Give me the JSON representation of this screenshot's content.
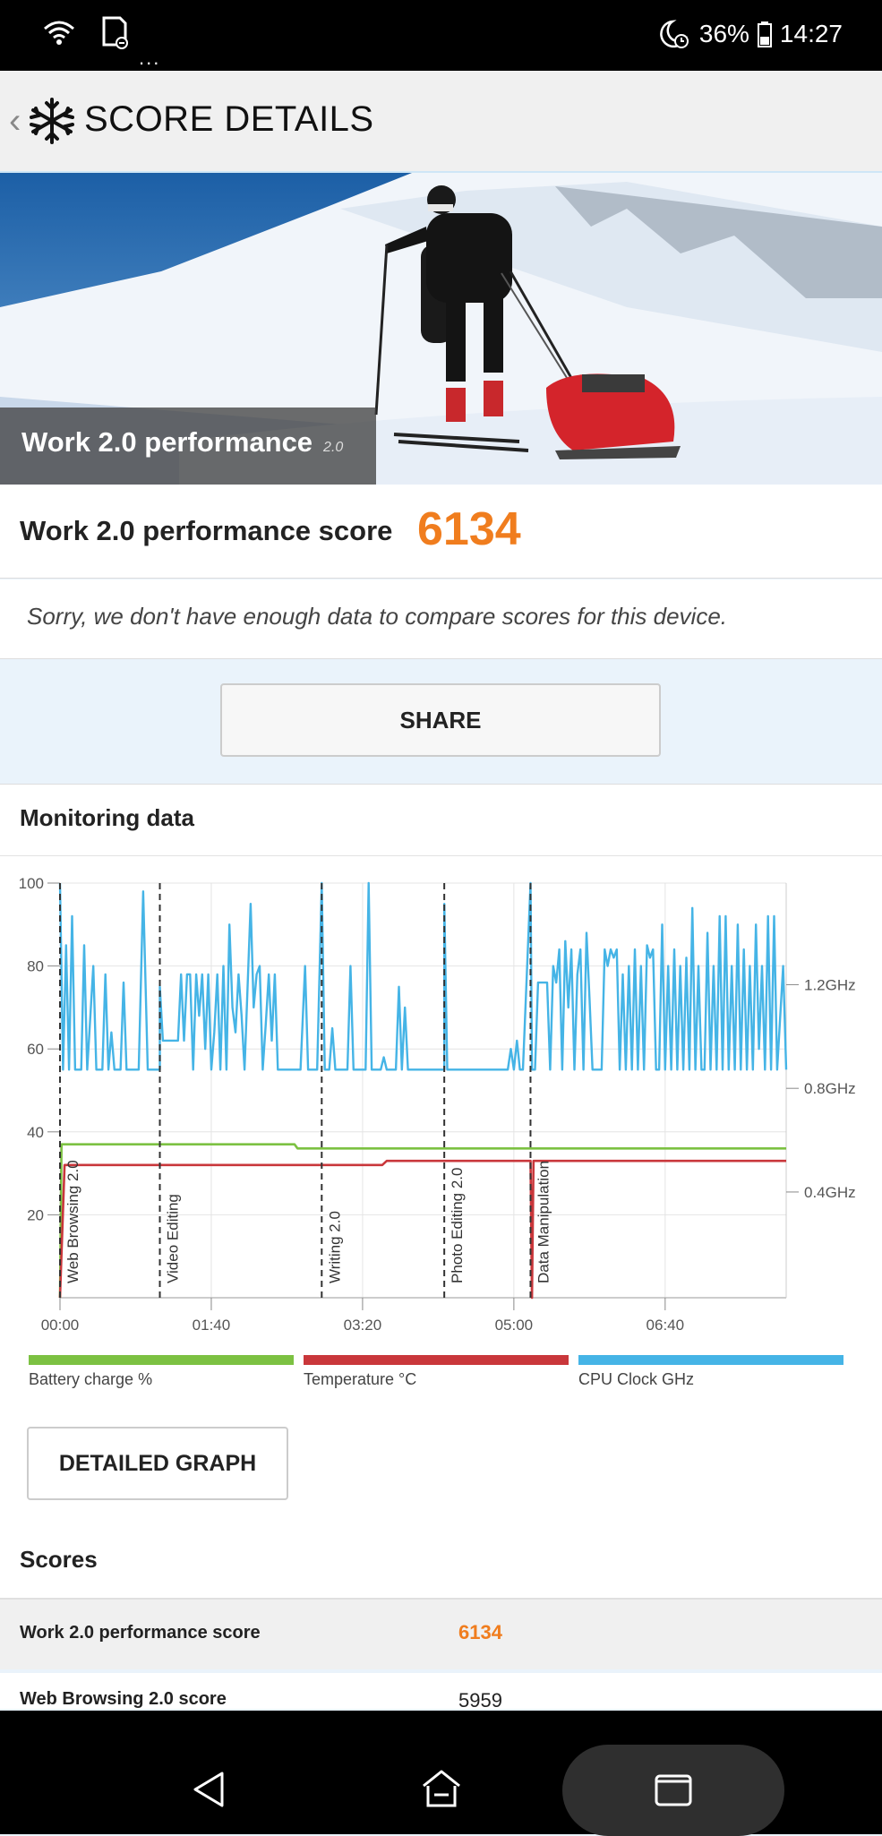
{
  "status_bar": {
    "battery_percent": "36%",
    "time": "14:27",
    "dots": "...",
    "icons": [
      "wifi-icon",
      "sd-card-icon",
      "moon-alarm-icon",
      "battery-icon"
    ]
  },
  "header": {
    "title": "SCORE DETAILS",
    "back_glyph": "‹",
    "icon": "snowflake-icon"
  },
  "hero": {
    "title": "Work 2.0 performance",
    "version": "2.0"
  },
  "score": {
    "label": "Work 2.0 performance score",
    "value": "6134"
  },
  "notice": "Sorry, we don't have enough data to compare scores for this device.",
  "share_label": "SHARE",
  "monitoring": {
    "title": "Monitoring data",
    "detailed_graph_label": "DETAILED GRAPH"
  },
  "chart_data": {
    "type": "line",
    "xlabel": "",
    "ylabel": "",
    "x_ticks": [
      "00:00",
      "01:40",
      "03:20",
      "05:00",
      "06:40"
    ],
    "x_range_seconds": [
      0,
      480
    ],
    "y_left": {
      "ticks": [
        20,
        40,
        60,
        80,
        100
      ],
      "range": [
        0,
        100
      ]
    },
    "y_right": {
      "ticks": [
        "0.4GHz",
        "0.8GHz",
        "1.2GHz"
      ]
    },
    "grid": true,
    "legend_position": "bottom",
    "colors": {
      "battery": "#7cc142",
      "temperature": "#c9373b",
      "cpu": "#45b4e6",
      "marker": "#333333"
    },
    "markers": [
      {
        "t": 0,
        "label": "Web Browsing 2.0"
      },
      {
        "t": 66,
        "label": "Video Editing"
      },
      {
        "t": 173,
        "label": "Writing 2.0"
      },
      {
        "t": 254,
        "label": "Photo Editing 2.0"
      },
      {
        "t": 311,
        "label": "Data Manipulation"
      }
    ],
    "series": [
      {
        "name": "Battery charge %",
        "points": [
          [
            0,
            0
          ],
          [
            1,
            37
          ],
          [
            155,
            37
          ],
          [
            157,
            36
          ],
          [
            480,
            36
          ]
        ]
      },
      {
        "name": "Temperature °C",
        "points": [
          [
            0,
            0
          ],
          [
            3,
            32
          ],
          [
            213,
            32
          ],
          [
            216,
            33
          ],
          [
            311,
            33
          ],
          [
            312,
            0
          ],
          [
            313,
            33
          ],
          [
            480,
            33
          ]
        ]
      },
      {
        "name": "CPU Clock GHz",
        "points": [
          [
            0,
            100
          ],
          [
            2,
            55
          ],
          [
            4,
            85
          ],
          [
            6,
            55
          ],
          [
            8,
            92
          ],
          [
            10,
            55
          ],
          [
            14,
            55
          ],
          [
            16,
            85
          ],
          [
            18,
            55
          ],
          [
            22,
            80
          ],
          [
            24,
            55
          ],
          [
            28,
            55
          ],
          [
            30,
            78
          ],
          [
            32,
            55
          ],
          [
            34,
            64
          ],
          [
            36,
            55
          ],
          [
            40,
            55
          ],
          [
            42,
            76
          ],
          [
            44,
            55
          ],
          [
            48,
            55
          ],
          [
            52,
            55
          ],
          [
            55,
            98
          ],
          [
            58,
            55
          ],
          [
            62,
            55
          ],
          [
            66,
            55
          ],
          [
            66,
            75
          ],
          [
            68,
            62
          ],
          [
            72,
            62
          ],
          [
            78,
            62
          ],
          [
            80,
            78
          ],
          [
            82,
            62
          ],
          [
            84,
            78
          ],
          [
            86,
            78
          ],
          [
            88,
            55
          ],
          [
            90,
            78
          ],
          [
            92,
            68
          ],
          [
            94,
            78
          ],
          [
            96,
            60
          ],
          [
            98,
            78
          ],
          [
            100,
            55
          ],
          [
            102,
            64
          ],
          [
            104,
            78
          ],
          [
            106,
            55
          ],
          [
            108,
            80
          ],
          [
            110,
            55
          ],
          [
            112,
            90
          ],
          [
            114,
            70
          ],
          [
            116,
            64
          ],
          [
            118,
            78
          ],
          [
            120,
            68
          ],
          [
            122,
            55
          ],
          [
            126,
            95
          ],
          [
            128,
            70
          ],
          [
            130,
            78
          ],
          [
            132,
            80
          ],
          [
            134,
            55
          ],
          [
            136,
            66
          ],
          [
            138,
            78
          ],
          [
            140,
            62
          ],
          [
            142,
            78
          ],
          [
            144,
            55
          ],
          [
            146,
            55
          ],
          [
            150,
            55
          ],
          [
            155,
            55
          ],
          [
            159,
            55
          ],
          [
            162,
            80
          ],
          [
            164,
            55
          ],
          [
            168,
            55
          ],
          [
            170,
            55
          ],
          [
            173,
            100
          ],
          [
            175,
            55
          ],
          [
            178,
            55
          ],
          [
            180,
            65
          ],
          [
            182,
            55
          ],
          [
            186,
            55
          ],
          [
            190,
            55
          ],
          [
            192,
            80
          ],
          [
            194,
            55
          ],
          [
            198,
            55
          ],
          [
            202,
            55
          ],
          [
            204,
            100
          ],
          [
            206,
            55
          ],
          [
            212,
            55
          ],
          [
            214,
            58
          ],
          [
            216,
            55
          ],
          [
            222,
            55
          ],
          [
            224,
            75
          ],
          [
            226,
            55
          ],
          [
            228,
            70
          ],
          [
            230,
            55
          ],
          [
            236,
            55
          ],
          [
            240,
            55
          ],
          [
            244,
            55
          ],
          [
            250,
            55
          ],
          [
            254,
            55
          ],
          [
            254,
            95
          ],
          [
            256,
            55
          ],
          [
            262,
            55
          ],
          [
            270,
            55
          ],
          [
            280,
            55
          ],
          [
            290,
            55
          ],
          [
            296,
            55
          ],
          [
            298,
            60
          ],
          [
            300,
            55
          ],
          [
            302,
            62
          ],
          [
            304,
            55
          ],
          [
            306,
            55
          ],
          [
            311,
            100
          ],
          [
            312,
            55
          ],
          [
            314,
            55
          ],
          [
            316,
            76
          ],
          [
            318,
            76
          ],
          [
            322,
            76
          ],
          [
            324,
            55
          ],
          [
            326,
            80
          ],
          [
            328,
            76
          ],
          [
            330,
            84
          ],
          [
            332,
            55
          ],
          [
            334,
            86
          ],
          [
            336,
            70
          ],
          [
            338,
            84
          ],
          [
            340,
            55
          ],
          [
            342,
            78
          ],
          [
            344,
            84
          ],
          [
            346,
            55
          ],
          [
            348,
            88
          ],
          [
            350,
            72
          ],
          [
            352,
            55
          ],
          [
            354,
            55
          ],
          [
            358,
            55
          ],
          [
            360,
            84
          ],
          [
            362,
            80
          ],
          [
            364,
            84
          ],
          [
            366,
            82
          ],
          [
            368,
            84
          ],
          [
            370,
            55
          ],
          [
            372,
            78
          ],
          [
            374,
            55
          ],
          [
            376,
            80
          ],
          [
            378,
            55
          ],
          [
            380,
            84
          ],
          [
            382,
            55
          ],
          [
            384,
            80
          ],
          [
            386,
            55
          ],
          [
            388,
            85
          ],
          [
            390,
            82
          ],
          [
            392,
            84
          ],
          [
            394,
            55
          ],
          [
            396,
            55
          ],
          [
            398,
            90
          ],
          [
            400,
            55
          ],
          [
            402,
            80
          ],
          [
            404,
            55
          ],
          [
            406,
            84
          ],
          [
            408,
            55
          ],
          [
            410,
            80
          ],
          [
            412,
            55
          ],
          [
            414,
            82
          ],
          [
            416,
            55
          ],
          [
            418,
            94
          ],
          [
            420,
            55
          ],
          [
            422,
            80
          ],
          [
            424,
            55
          ],
          [
            426,
            55
          ],
          [
            428,
            88
          ],
          [
            430,
            55
          ],
          [
            432,
            80
          ],
          [
            434,
            55
          ],
          [
            436,
            92
          ],
          [
            438,
            55
          ],
          [
            440,
            92
          ],
          [
            442,
            55
          ],
          [
            444,
            80
          ],
          [
            446,
            55
          ],
          [
            448,
            90
          ],
          [
            450,
            55
          ],
          [
            452,
            84
          ],
          [
            454,
            55
          ],
          [
            456,
            80
          ],
          [
            458,
            55
          ],
          [
            460,
            90
          ],
          [
            462,
            60
          ],
          [
            464,
            80
          ],
          [
            466,
            55
          ],
          [
            468,
            92
          ],
          [
            470,
            55
          ],
          [
            472,
            92
          ],
          [
            474,
            55
          ],
          [
            478,
            80
          ],
          [
            480,
            55
          ]
        ]
      }
    ]
  },
  "scores": {
    "title": "Scores",
    "rows": [
      {
        "label": "Work 2.0 performance score",
        "value": "6134",
        "highlight": "#f07d1e"
      },
      {
        "label": "Web Browsing 2.0 score",
        "value": "5959",
        "highlight": "#222222"
      }
    ]
  }
}
